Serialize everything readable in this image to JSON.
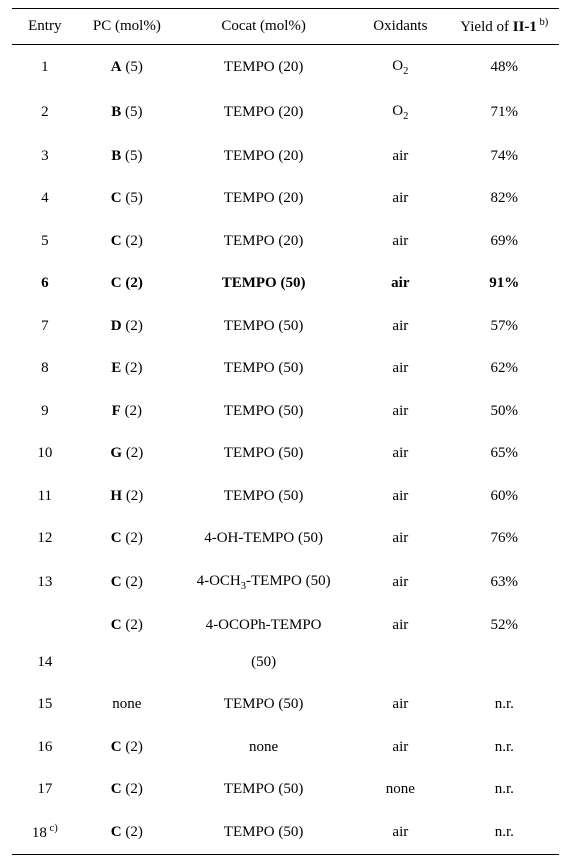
{
  "table": {
    "columns": {
      "entry": "Entry",
      "pc": "PC (mol%)",
      "cocat": "Cocat (mol%)",
      "oxidants": "Oxidants",
      "yield_pre": "Yield of ",
      "yield_bold": "II-1",
      "yield_sup": " b)"
    },
    "rows": [
      {
        "entry": "1",
        "pc_sym": "A",
        "pc_paren": " (5)",
        "cocat": "TEMPO (20)",
        "ox_pre": "O",
        "ox_sub": "2",
        "yield": "48%",
        "bold": false
      },
      {
        "entry": "2",
        "pc_sym": "B",
        "pc_paren": " (5)",
        "cocat": "TEMPO (20)",
        "ox_pre": "O",
        "ox_sub": "2",
        "yield": "71%",
        "bold": false
      },
      {
        "entry": "3",
        "pc_sym": "B",
        "pc_paren": " (5)",
        "cocat": "TEMPO (20)",
        "ox_pre": "air",
        "ox_sub": "",
        "yield": "74%",
        "bold": false
      },
      {
        "entry": "4",
        "pc_sym": "C",
        "pc_paren": " (5)",
        "cocat": "TEMPO (20)",
        "ox_pre": "air",
        "ox_sub": "",
        "yield": "82%",
        "bold": false
      },
      {
        "entry": "5",
        "pc_sym": "C",
        "pc_paren": " (2)",
        "cocat": "TEMPO (20)",
        "ox_pre": "air",
        "ox_sub": "",
        "yield": "69%",
        "bold": false
      },
      {
        "entry": "6",
        "pc_sym": "C",
        "pc_paren": " (2)",
        "cocat": "TEMPO (50)",
        "ox_pre": "air",
        "ox_sub": "",
        "yield": "91%",
        "bold": true
      },
      {
        "entry": "7",
        "pc_sym": "D",
        "pc_paren": " (2)",
        "cocat": "TEMPO (50)",
        "ox_pre": "air",
        "ox_sub": "",
        "yield": "57%",
        "bold": false
      },
      {
        "entry": "8",
        "pc_sym": "E",
        "pc_paren": " (2)",
        "cocat": "TEMPO (50)",
        "ox_pre": "air",
        "ox_sub": "",
        "yield": "62%",
        "bold": false
      },
      {
        "entry": "9",
        "pc_sym": "F",
        "pc_paren": " (2)",
        "cocat": "TEMPO (50)",
        "ox_pre": "air",
        "ox_sub": "",
        "yield": "50%",
        "bold": false
      },
      {
        "entry": "10",
        "pc_sym": "G",
        "pc_paren": " (2)",
        "cocat": "TEMPO (50)",
        "ox_pre": "air",
        "ox_sub": "",
        "yield": "65%",
        "bold": false
      },
      {
        "entry": "11",
        "pc_sym": "H",
        "pc_paren": " (2)",
        "cocat": "TEMPO (50)",
        "ox_pre": "air",
        "ox_sub": "",
        "yield": "60%",
        "bold": false
      },
      {
        "entry": "12",
        "pc_sym": "C",
        "pc_paren": " (2)",
        "cocat": "4-OH-TEMPO (50)",
        "ox_pre": "air",
        "ox_sub": "",
        "yield": "76%",
        "bold": false
      },
      {
        "entry": "13",
        "pc_sym": "C",
        "pc_paren": " (2)",
        "cocat_pre": "4-OCH",
        "cocat_sub": "3",
        "cocat_post": "-TEMPO (50)",
        "ox_pre": "air",
        "ox_sub": "",
        "yield": "63%",
        "bold": false,
        "cocat_has_sub": true
      },
      {
        "entry": "14",
        "pc_sym": "C",
        "pc_paren": " (2)",
        "cocat_line1": "4-OCOPh-TEMPO",
        "cocat_line2": "(50)",
        "ox_pre": "air",
        "ox_sub": "",
        "yield": "52%",
        "bold": false,
        "two_line": true,
        "entry_bottom": true
      },
      {
        "entry": "15",
        "pc_sym": "",
        "pc_paren": "none",
        "cocat": "TEMPO (50)",
        "ox_pre": "air",
        "ox_sub": "",
        "yield": "n.r.",
        "bold": false
      },
      {
        "entry": "16",
        "pc_sym": "C",
        "pc_paren": " (2)",
        "cocat": "none",
        "ox_pre": "air",
        "ox_sub": "",
        "yield": "n.r.",
        "bold": false
      },
      {
        "entry": "17",
        "pc_sym": "C",
        "pc_paren": " (2)",
        "cocat": "TEMPO (50)",
        "ox_pre": "none",
        "ox_sub": "",
        "yield": "n.r.",
        "bold": false
      },
      {
        "entry": "18",
        "entry_sup": " c)",
        "pc_sym": "C",
        "pc_paren": " (2)",
        "cocat": "TEMPO (50)",
        "ox_pre": "air",
        "ox_sub": "",
        "yield": "n.r.",
        "bold": false
      }
    ]
  }
}
